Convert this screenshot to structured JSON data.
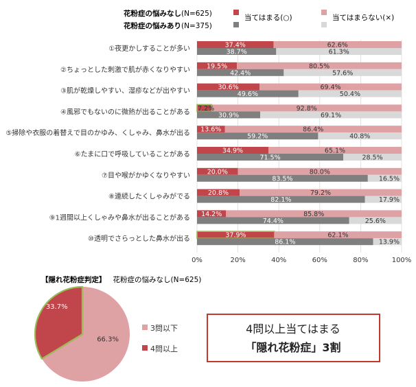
{
  "legend": {
    "group_a_bold": "花粉症の悩みなし",
    "group_a_n": "(N=625)",
    "group_b_bold": "花粉症の悩みあり",
    "group_b_n": "(N=375)",
    "key_apply": "当てはまる(○)",
    "key_not_apply": "当てはまらない(×)"
  },
  "colors": {
    "a_apply": "#c0464b",
    "a_not_apply": "#dea1a4",
    "b_apply": "#7f7f7f",
    "b_not_apply": "#d9d9d9",
    "highlight": "#9bbb59",
    "callout_border": "#c0392b"
  },
  "chart_data": [
    {
      "type": "bar",
      "orientation": "horizontal",
      "stacked": true,
      "categories": [
        "①夜更かしすることが多い",
        "②ちょっとした刺激で肌が赤くなりやすい",
        "③肌が乾燥しやすい、湿疹などが出やすい",
        "④風邪でもないのに微熱が出ることがある",
        "⑤掃除や衣服の着替えで目のかゆみ、くしゃみ、鼻水が出る",
        "⑥たまに口で呼吸していることがある",
        "⑦目や喉がかゆくなりやすい",
        "⑧連続したくしゃみがでる",
        "⑨1週間以上くしゃみや鼻水が出ることがある",
        "⑩透明でさらっとした鼻水が出る"
      ],
      "series": [
        {
          "name": "当てはまる(○)",
          "group": "花粉症の悩みなし",
          "values": [
            37.4,
            19.5,
            30.6,
            7.2,
            13.6,
            34.9,
            20.0,
            20.8,
            14.2,
            37.9
          ],
          "labels": [
            "37.4%",
            "19.5%",
            "30.6%",
            "7.2%",
            "13.6%",
            "34.9%",
            "20.0%",
            "20.8%",
            "14.2%",
            "37.9%"
          ]
        },
        {
          "name": "当てはまらない(×)",
          "group": "花粉症の悩みなし",
          "values": [
            62.6,
            80.5,
            69.4,
            92.8,
            86.4,
            65.1,
            80.0,
            79.2,
            85.8,
            62.1
          ],
          "labels": [
            "62.6%",
            "80.5%",
            "69.4%",
            "92.8%",
            "86.4%",
            "65.1%",
            "80.0%",
            "79.2%",
            "85.8%",
            "62.1%"
          ]
        },
        {
          "name": "当てはまる(○)",
          "group": "花粉症の悩みあり",
          "values": [
            38.7,
            42.4,
            49.6,
            30.9,
            59.2,
            71.5,
            83.5,
            82.1,
            74.4,
            86.1
          ],
          "labels": [
            "38.7%",
            "42.4%",
            "49.6%",
            "30.9%",
            "59.2%",
            "71.5%",
            "83.5%",
            "82.1%",
            "74.4%",
            "86.1%"
          ]
        },
        {
          "name": "当てはまらない(×)",
          "group": "花粉症の悩みあり",
          "values": [
            61.3,
            57.6,
            50.4,
            69.1,
            40.8,
            28.5,
            16.5,
            17.9,
            25.6,
            13.9
          ],
          "labels": [
            "61.3%",
            "57.6%",
            "50.4%",
            "69.1%",
            "40.8%",
            "28.5%",
            "16.5%",
            "17.9%",
            "25.6%",
            "13.9%"
          ]
        }
      ],
      "xlim": [
        0,
        100
      ],
      "xticks": [
        "0%",
        "20%",
        "40%",
        "60%",
        "80%",
        "100%"
      ],
      "highlighted_rows": [
        3,
        9
      ],
      "legend_position": "top"
    },
    {
      "type": "pie",
      "title_bracket": "【隠れ花粉症判定】",
      "subtitle": "花粉症の悩みなし(N=625)",
      "slices": [
        {
          "label": "4問以上",
          "value": 33.7,
          "text": "33.7%"
        },
        {
          "label": "3問以下",
          "value": 66.3,
          "text": "66.3%"
        }
      ],
      "legend_position": "right"
    }
  ],
  "callout": {
    "line1": "4問以上当てはまる",
    "line2": "「隠れ花粉症」3割"
  }
}
